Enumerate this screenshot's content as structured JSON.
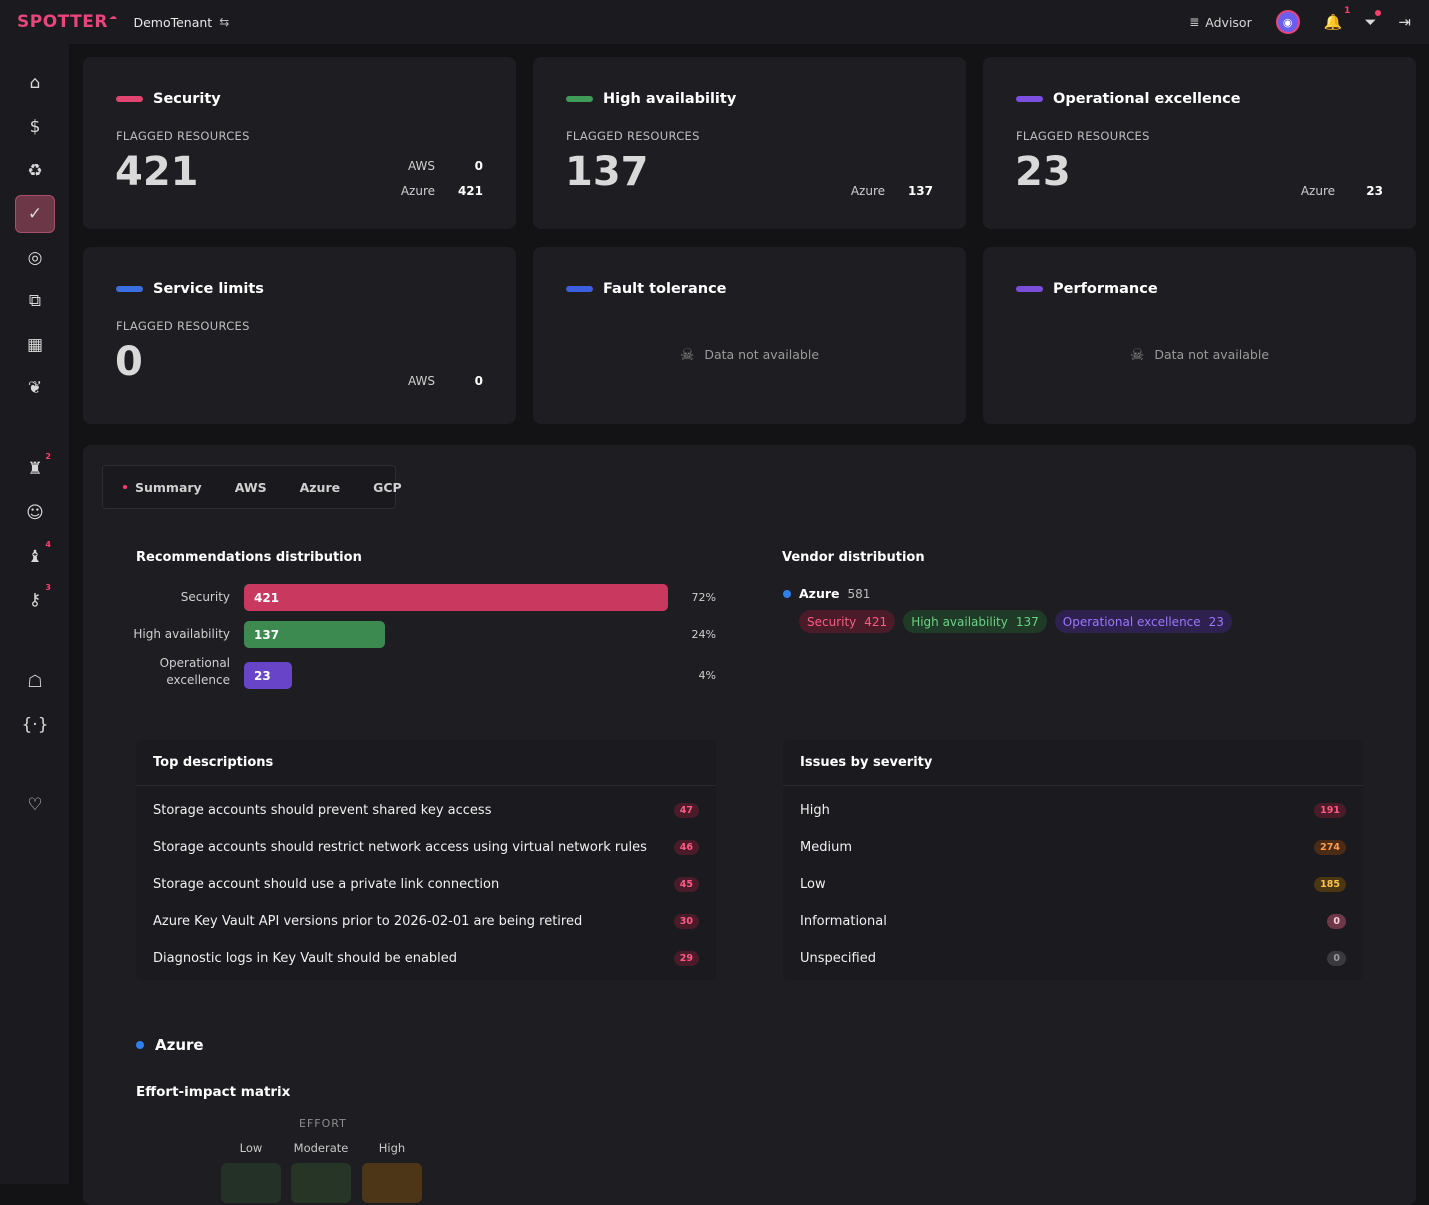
{
  "header": {
    "brand": "SPOTTER",
    "brand_sup": "☁",
    "tenant": "DemoTenant",
    "tenant_swap_icon": "⇆",
    "advisor_label": "Advisor",
    "advisor_icon": "≣",
    "notification_count": "1",
    "bell_icon": "🔔",
    "filter_icon": "⏷",
    "logout_icon": "⇥"
  },
  "sidebar": {
    "items": [
      {
        "icon": "⌂",
        "name": "home"
      },
      {
        "icon": "$",
        "name": "cost"
      },
      {
        "icon": "♻",
        "name": "savings"
      },
      {
        "icon": "✓",
        "name": "advisor",
        "active": true
      },
      {
        "icon": "◎",
        "name": "goals"
      },
      {
        "icon": "⧉",
        "name": "tickets"
      },
      {
        "icon": "▦",
        "name": "map"
      },
      {
        "icon": "❦",
        "name": "butterfly"
      },
      {
        "icon": "♜",
        "name": "champions",
        "badge": "2"
      },
      {
        "icon": "☺",
        "name": "masks"
      },
      {
        "icon": "♝",
        "name": "chess",
        "badge": "4"
      },
      {
        "icon": "⚷",
        "name": "access",
        "badge": "3"
      },
      {
        "icon": "☖",
        "name": "bot"
      },
      {
        "icon": "{·}",
        "name": "code"
      },
      {
        "icon": "♡",
        "name": "favorites"
      }
    ]
  },
  "cards": [
    {
      "title": "Security",
      "color": "#e0466f",
      "sub": "FLAGGED RESOURCES",
      "num": "421",
      "vendors": [
        {
          "name": "AWS",
          "val": "0"
        },
        {
          "name": "Azure",
          "val": "421"
        }
      ]
    },
    {
      "title": "High availability",
      "color": "#3f9b57",
      "sub": "FLAGGED RESOURCES",
      "num": "137",
      "vendors": [
        {
          "name": "Azure",
          "val": "137"
        }
      ]
    },
    {
      "title": "Operational excellence",
      "color": "#7b4fe0",
      "sub": "FLAGGED RESOURCES",
      "num": "23",
      "vendors": [
        {
          "name": "Azure",
          "val": "23"
        }
      ]
    },
    {
      "title": "Service limits",
      "color": "#3b6fe0",
      "sub": "FLAGGED RESOURCES",
      "num": "0",
      "vendors": [
        {
          "name": "AWS",
          "val": "0"
        }
      ]
    },
    {
      "title": "Fault tolerance",
      "color": "#3b5fe0",
      "na": "Data not available"
    },
    {
      "title": "Performance",
      "color": "#7a4fd8",
      "na": "Data not available"
    }
  ],
  "na_icon": "☠",
  "tabs": [
    "Summary",
    "AWS",
    "Azure",
    "GCP"
  ],
  "rec_dist": {
    "title": "Recommendations distribution",
    "rows": [
      {
        "label": "Security",
        "value": "421",
        "pct": "72%",
        "color": "#c9395f",
        "frac": 0.72
      },
      {
        "label": "High availability",
        "value": "137",
        "pct": "24%",
        "color": "#3d8a51",
        "frac": 0.24
      },
      {
        "label": "Operational excellence",
        "value": "23",
        "pct": "4%",
        "color": "#6844c9",
        "frac": 0.04
      }
    ]
  },
  "vendor_dist": {
    "title": "Vendor distribution",
    "vendor": "Azure",
    "count": "581",
    "tags": [
      {
        "label": "Security",
        "count": "421",
        "bg": "#4a1c29",
        "fg": "#ff5a85"
      },
      {
        "label": "High availability",
        "count": "137",
        "bg": "#1f3a26",
        "fg": "#6bd384"
      },
      {
        "label": "Operational excellence",
        "count": "23",
        "bg": "#2e2150",
        "fg": "#9b76ff"
      }
    ]
  },
  "top_desc": {
    "title": "Top descriptions",
    "rows": [
      {
        "text": "Storage accounts should prevent shared key access",
        "count": "47"
      },
      {
        "text": "Storage accounts should restrict network access using virtual network rules",
        "count": "46"
      },
      {
        "text": "Storage account should use a private link connection",
        "count": "45"
      },
      {
        "text": "Azure Key Vault API versions prior to 2026-02-01 are being retired",
        "count": "30"
      },
      {
        "text": "Diagnostic logs in Key Vault should be enabled",
        "count": "29"
      }
    ]
  },
  "severity": {
    "title": "Issues by severity",
    "rows": [
      {
        "text": "High",
        "count": "191",
        "bg": "#4a1c29",
        "fg": "#ff5a85"
      },
      {
        "text": "Medium",
        "count": "274",
        "bg": "#4a2c16",
        "fg": "#ff9c52"
      },
      {
        "text": "Low",
        "count": "185",
        "bg": "#4a3712",
        "fg": "#ffc24d"
      },
      {
        "text": "Informational",
        "count": "0",
        "bg": "#6e3848",
        "fg": "#ffd0dc"
      },
      {
        "text": "Unspecified",
        "count": "0",
        "bg": "#3a3a3e",
        "fg": "#9a9a9a"
      }
    ]
  },
  "azure_section": "Azure",
  "matrix": {
    "title": "Effort-impact matrix",
    "effort_label": "EFFORT",
    "cols": [
      "Low",
      "Moderate",
      "High"
    ]
  }
}
